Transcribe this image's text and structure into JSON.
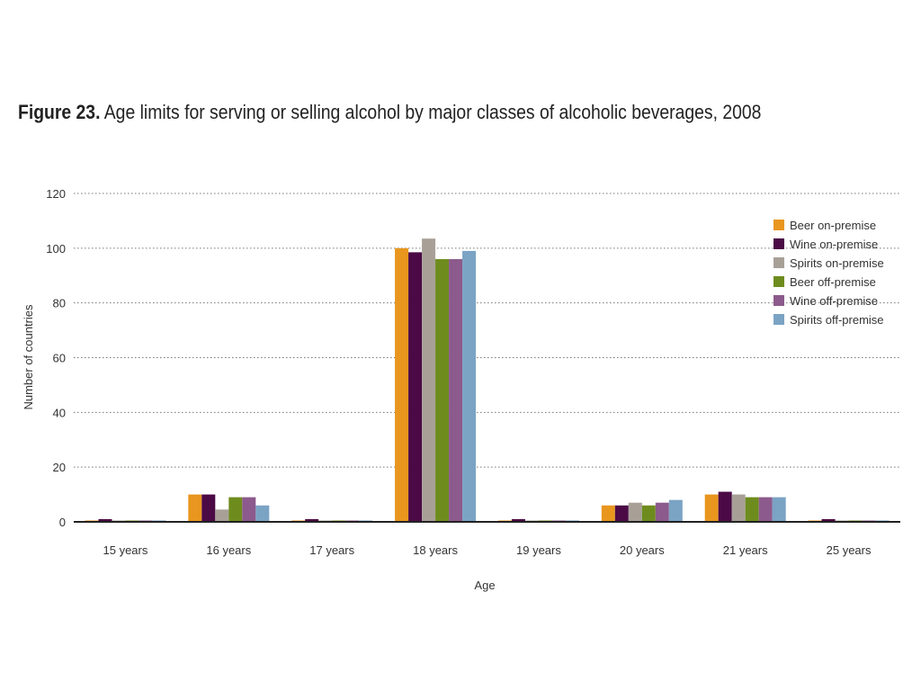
{
  "figure": {
    "number": "Figure 23.",
    "caption": "Age limits for serving or selling alcohol by major classes of alcoholic beverages, 2008"
  },
  "chart_data": {
    "type": "bar",
    "title": "Figure 23. Age limits for serving or selling alcohol by major classes of alcoholic beverages, 2008",
    "xlabel": "Age",
    "ylabel": "Number of countries",
    "categories": [
      "15 years",
      "16 years",
      "17 years",
      "18 years",
      "19 years",
      "20 years",
      "21 years",
      "25 years"
    ],
    "ylim": [
      0,
      120
    ],
    "yticks": [
      0,
      20,
      40,
      60,
      80,
      100,
      120
    ],
    "grid": "horizontal dotted",
    "legend_position": "top-right",
    "series": [
      {
        "name": "Beer on-premise",
        "color": "#E8961E",
        "values": [
          0.5,
          10,
          0.5,
          100,
          0.5,
          6,
          10,
          0.5
        ]
      },
      {
        "name": "Wine on-premise",
        "color": "#4B0A45",
        "values": [
          1,
          10,
          1,
          98.5,
          1,
          6,
          11,
          1
        ]
      },
      {
        "name": "Spirits on-premise",
        "color": "#A8A097",
        "values": [
          0.5,
          4.5,
          0.5,
          103.5,
          0.5,
          7,
          10,
          0.5
        ]
      },
      {
        "name": "Beer off-premise",
        "color": "#6E8C1E",
        "values": [
          0.5,
          9,
          0.5,
          96,
          0.5,
          6,
          9,
          0.5
        ]
      },
      {
        "name": "Wine off-premise",
        "color": "#8C5A8C",
        "values": [
          0.5,
          9,
          0.5,
          96,
          0.5,
          7,
          9,
          0.5
        ]
      },
      {
        "name": "Spirits off-premise",
        "color": "#7BA3C4",
        "values": [
          0.5,
          6,
          0.5,
          99,
          0.5,
          8,
          9,
          0.5
        ]
      }
    ]
  }
}
